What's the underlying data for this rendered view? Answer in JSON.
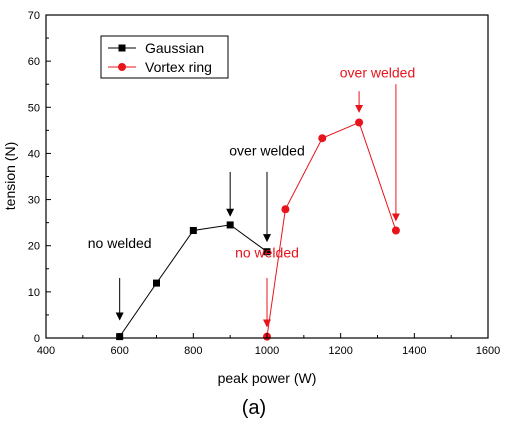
{
  "chart_data": {
    "type": "line",
    "xlabel": "peak power (W)",
    "ylabel": "tension (N)",
    "xlim": [
      400,
      1600
    ],
    "ylim": [
      0,
      70
    ],
    "x_ticks": [
      "400",
      "600",
      "800",
      "1000",
      "1200",
      "1400",
      "1600"
    ],
    "y_ticks": [
      "0",
      "10",
      "20",
      "30",
      "40",
      "50",
      "60",
      "70"
    ],
    "grid": false,
    "legend_position": "top-left",
    "series": [
      {
        "name": "Gaussian",
        "marker": "square",
        "color": "#000000",
        "x": [
          600,
          700,
          800,
          900,
          1000
        ],
        "y": [
          0.3,
          11.9,
          23.3,
          24.5,
          18.7
        ]
      },
      {
        "name": "Vortex ring",
        "marker": "circle",
        "color": "#e8141c",
        "x": [
          1000,
          1050,
          1150,
          1250,
          1350
        ],
        "y": [
          0.3,
          27.9,
          43.3,
          46.7,
          23.3
        ]
      }
    ],
    "annotations": [
      {
        "text": "no welded",
        "color": "#000000",
        "text_x": 600,
        "text_y": 19.5,
        "arrow_from": [
          600,
          13
        ],
        "arrow_to": [
          600,
          4
        ]
      },
      {
        "text": "over welded",
        "color": "#000000",
        "text_x": 1000,
        "text_y": 39.5,
        "arrow_from": [
          900,
          36
        ],
        "arrow_to": [
          900,
          26.5
        ]
      },
      {
        "text": "",
        "color": "#000000",
        "arrow_from": [
          1000,
          36
        ],
        "arrow_to": [
          1000,
          21
        ]
      },
      {
        "text": "no welded",
        "color": "#e8141c",
        "text_x": 1000,
        "text_y": 17.5,
        "arrow_from": [
          1000,
          13
        ],
        "arrow_to": [
          1000,
          2.5
        ]
      },
      {
        "text": "over welded",
        "color": "#e8141c",
        "text_x": 1300,
        "text_y": 56.5,
        "arrow_from": [
          1250,
          53.5
        ],
        "arrow_to": [
          1250,
          49
        ]
      },
      {
        "text": "",
        "color": "#e8141c",
        "arrow_from": [
          1350,
          55
        ],
        "arrow_to": [
          1350,
          25.5
        ]
      }
    ]
  },
  "caption": "(a)"
}
